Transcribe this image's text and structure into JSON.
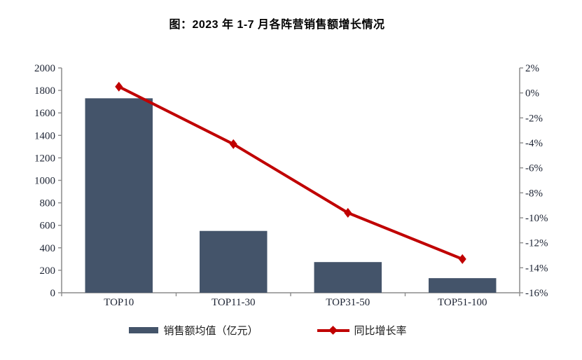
{
  "title": "图：2023 年 1-7 月各阵营销售额增长情况",
  "legend": {
    "bar_label": "销售额均值（亿元）",
    "line_label": "同比增长率"
  },
  "colors": {
    "bar": "#44546A",
    "line": "#C00000",
    "axis": "#8C8C8C",
    "text": "#1c2333"
  },
  "chart_data": {
    "type": "bar",
    "subtype": "combo-bar-line-dual-axis",
    "title": "图：2023 年 1-7 月各阵营销售额增长情况",
    "categories": [
      "TOP10",
      "TOP11-30",
      "TOP31-50",
      "TOP51-100"
    ],
    "series": [
      {
        "name": "销售额均值（亿元）",
        "type": "bar",
        "axis": "left",
        "values": [
          1730,
          550,
          273,
          130
        ],
        "color": "#44546A"
      },
      {
        "name": "同比增长率",
        "type": "line",
        "axis": "right",
        "marker": "diamond",
        "values": [
          0.5,
          -4.1,
          -9.6,
          -13.3
        ],
        "unit": "%",
        "color": "#C00000"
      }
    ],
    "left_axis": {
      "min": 0,
      "max": 2000,
      "step": 200,
      "tick_labels": [
        "2000",
        "1800",
        "1600",
        "1400",
        "1200",
        "1000",
        "800",
        "600",
        "400",
        "200",
        "0"
      ]
    },
    "right_axis": {
      "min": -16,
      "max": 2,
      "step": 2,
      "unit": "%",
      "tick_labels": [
        "2%",
        "0%",
        "-2%",
        "-4%",
        "-6%",
        "-8%",
        "-10%",
        "-12%",
        "-14%",
        "-16%"
      ]
    },
    "grid": false,
    "legend_position": "bottom"
  }
}
